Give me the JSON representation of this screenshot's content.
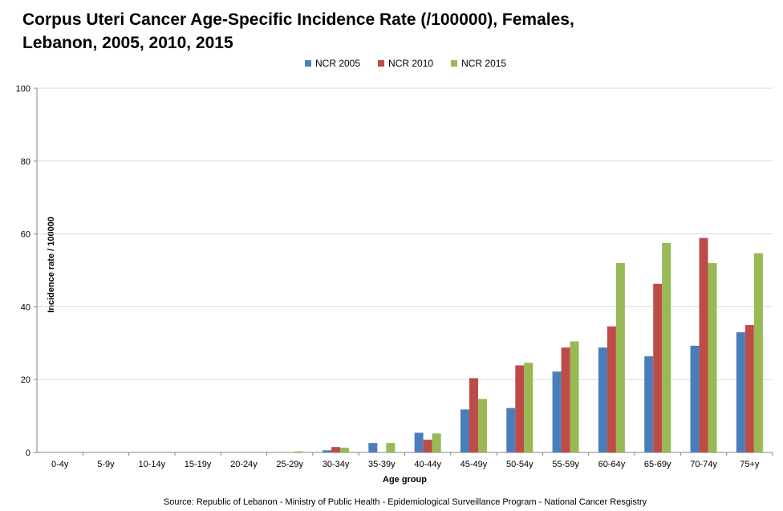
{
  "chart_data": {
    "type": "bar",
    "title": "Corpus Uteri Cancer Age-Specific Incidence Rate (/100000), Females, Lebanon, 2005, 2010, 2015",
    "xlabel": "Age group",
    "ylabel": "Incidence  rate / 100000",
    "ylim": [
      0,
      100
    ],
    "yticks": [
      0,
      20,
      40,
      60,
      80,
      100
    ],
    "grid": true,
    "legend_position": "top",
    "categories": [
      "0-4y",
      "5-9y",
      "10-14y",
      "15-19y",
      "20-24y",
      "25-29y",
      "30-34y",
      "35-39y",
      "40-44y",
      "45-49y",
      "50-54y",
      "55-59y",
      "60-64y",
      "65-69y",
      "70-74y",
      "75+y"
    ],
    "series": [
      {
        "name": "NCR 2005",
        "color": "#4a7ebb",
        "values": [
          0,
          0,
          0,
          0,
          0,
          0,
          0.6,
          2.6,
          5.4,
          11.8,
          12.2,
          22.2,
          28.8,
          26.4,
          29.3,
          33.0
        ]
      },
      {
        "name": "NCR 2010",
        "color": "#be4b48",
        "values": [
          0,
          0,
          0,
          0,
          0,
          0,
          1.5,
          0,
          3.5,
          20.4,
          23.9,
          28.8,
          34.6,
          46.3,
          58.9,
          35.0
        ]
      },
      {
        "name": "NCR 2015",
        "color": "#98b954",
        "values": [
          0,
          0,
          0,
          0,
          0,
          0.3,
          1.3,
          2.6,
          5.2,
          14.7,
          24.6,
          30.5,
          52.0,
          57.5,
          52.0,
          54.7
        ]
      }
    ]
  },
  "source": "Source: Republic of Lebanon - Ministry of Public Health - Epidemiological Surveillance Program - National Cancer Resgistry"
}
